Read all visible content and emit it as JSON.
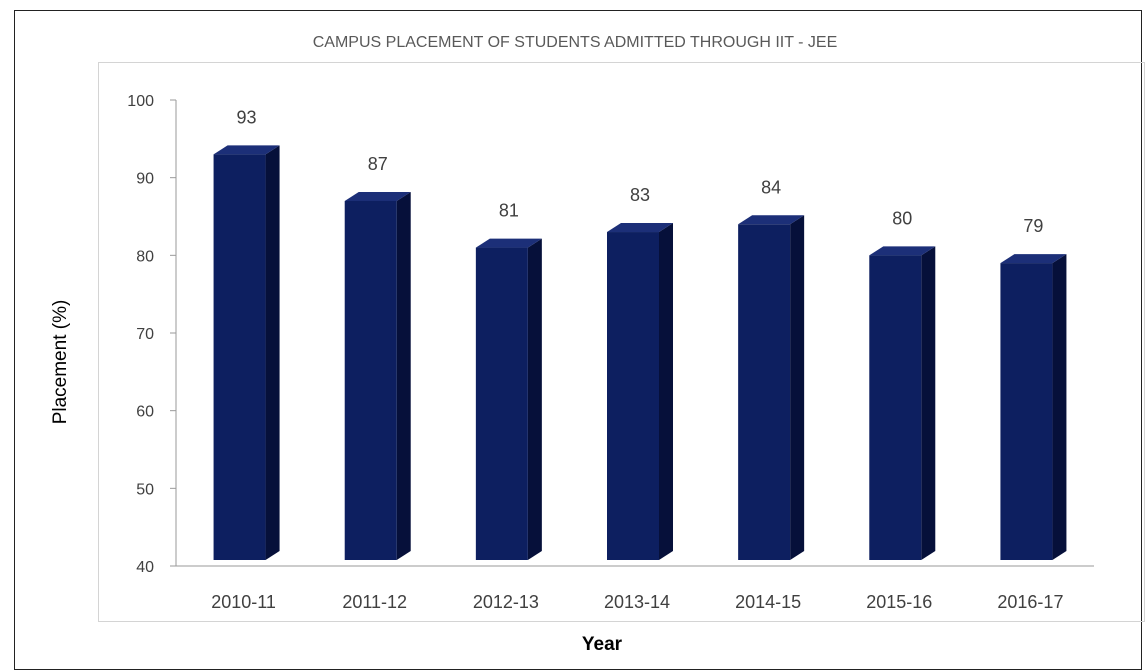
{
  "chart_data": {
    "type": "bar",
    "title": "CAMPUS PLACEMENT OF STUDENTS ADMITTED THROUGH IIT - JEE",
    "xlabel": "Year",
    "ylabel": "Placement (%)",
    "categories": [
      "2010-11",
      "2011-12",
      "2012-13",
      "2013-14",
      "2014-15",
      "2015-16",
      "2016-17"
    ],
    "values": [
      93,
      87,
      81,
      83,
      84,
      80,
      79
    ],
    "ylim": [
      40,
      100
    ],
    "yticks": [
      40,
      50,
      60,
      70,
      80,
      90,
      100
    ],
    "grid": false,
    "bar_style": "3d",
    "colors": {
      "bar_front": "#0d1f60",
      "bar_side": "#06103a",
      "bar_top": "#1c2f78"
    }
  }
}
